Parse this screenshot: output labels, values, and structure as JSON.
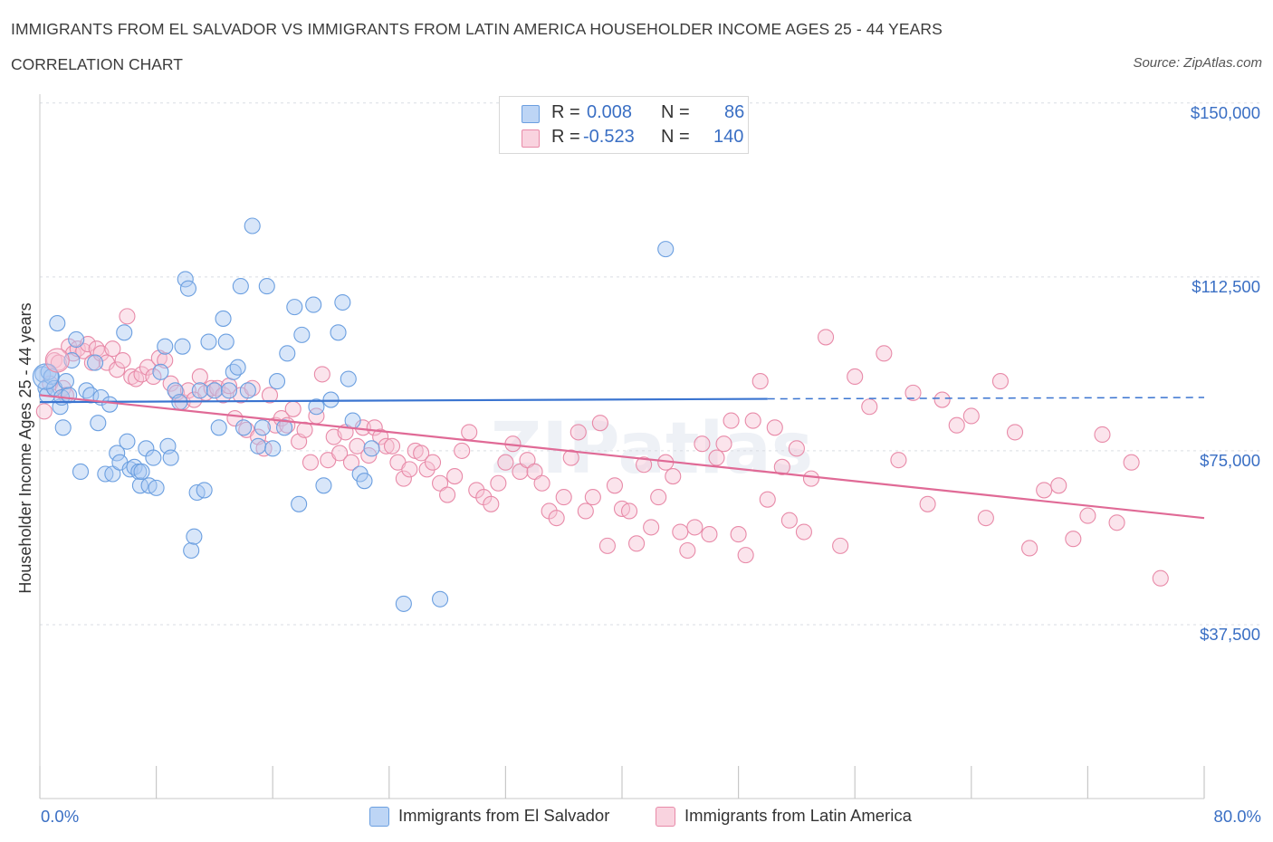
{
  "title": "IMMIGRANTS FROM EL SALVADOR VS IMMIGRANTS FROM LATIN AMERICA HOUSEHOLDER INCOME AGES 25 - 44 YEARS",
  "subtitle": "CORRELATION CHART",
  "source": "Source: ZipAtlas.com",
  "watermark": "ZIPatlas",
  "legend": {
    "rows": [
      {
        "r_label": "R =",
        "r_value": "0.008",
        "n_label": "N =",
        "n_value": "86",
        "color": "#a9c8f2",
        "border": "#6b9fe0"
      },
      {
        "r_label": "R =",
        "r_value": "-0.523",
        "n_label": "N =",
        "n_value": "140",
        "color": "#f7c4d4",
        "border": "#e88aa8"
      }
    ]
  },
  "bottom_legend": [
    {
      "label": "Immigrants from El Salvador",
      "color": "#a9c8f2",
      "border": "#6b9fe0"
    },
    {
      "label": "Immigrants from Latin America",
      "color": "#f7c4d4",
      "border": "#e88aa8"
    }
  ],
  "chart_data": {
    "type": "scatter",
    "title": "IMMIGRANTS FROM EL SALVADOR VS IMMIGRANTS FROM LATIN AMERICA HOUSEHOLDER INCOME AGES 25 - 44 YEARS",
    "ylabel": "Householder Income Ages 25 - 44 years",
    "xlabel": "",
    "x_tick_labels": [
      "0.0%",
      "80.0%"
    ],
    "y_tick_labels": [
      "$150,000",
      "$112,500",
      "$75,000",
      "$37,500"
    ],
    "y_ticks": [
      150000,
      112500,
      75000,
      37500
    ],
    "xlim": [
      0,
      80
    ],
    "ylim": [
      0,
      150000
    ],
    "grid": true,
    "colors": {
      "series1": "#6b9fe0",
      "series2": "#e88aa8",
      "line1": "#3a74d0",
      "line2": "#e06a96",
      "tick_label": "#3a6fc4"
    },
    "series": [
      {
        "name": "Immigrants from El Salvador",
        "trend": {
          "x": [
            0,
            50
          ],
          "y": [
            85500,
            86200
          ],
          "dashed_to_x": 80,
          "dashed_end_y": 86500
        },
        "points": [
          [
            0.2,
            91500
          ],
          [
            0.4,
            88500
          ],
          [
            0.5,
            87000
          ],
          [
            0.6,
            92000
          ],
          [
            0.8,
            91000
          ],
          [
            1.0,
            88500
          ],
          [
            1.2,
            102500
          ],
          [
            1.4,
            84500
          ],
          [
            1.5,
            86500
          ],
          [
            1.6,
            80000
          ],
          [
            1.8,
            90000
          ],
          [
            2.0,
            87000
          ],
          [
            2.2,
            94500
          ],
          [
            2.5,
            99000
          ],
          [
            2.8,
            70500
          ],
          [
            3.2,
            88000
          ],
          [
            3.5,
            87000
          ],
          [
            3.8,
            94000
          ],
          [
            4.0,
            81000
          ],
          [
            4.2,
            86500
          ],
          [
            4.5,
            70000
          ],
          [
            4.8,
            85000
          ],
          [
            5.0,
            70000
          ],
          [
            5.3,
            74500
          ],
          [
            5.5,
            72500
          ],
          [
            5.8,
            100500
          ],
          [
            6.0,
            77000
          ],
          [
            6.2,
            71000
          ],
          [
            6.5,
            71500
          ],
          [
            6.8,
            70500
          ],
          [
            6.9,
            67500
          ],
          [
            7.0,
            70500
          ],
          [
            7.3,
            75500
          ],
          [
            7.5,
            67500
          ],
          [
            7.8,
            73500
          ],
          [
            8.0,
            67000
          ],
          [
            8.3,
            92000
          ],
          [
            8.6,
            97500
          ],
          [
            8.8,
            76000
          ],
          [
            9.0,
            73500
          ],
          [
            9.3,
            88000
          ],
          [
            9.6,
            85500
          ],
          [
            9.8,
            97500
          ],
          [
            10.0,
            112000
          ],
          [
            10.2,
            110000
          ],
          [
            10.4,
            53500
          ],
          [
            10.6,
            56500
          ],
          [
            10.8,
            66000
          ],
          [
            11.0,
            88000
          ],
          [
            11.3,
            66500
          ],
          [
            11.6,
            98500
          ],
          [
            12.0,
            88000
          ],
          [
            12.3,
            80000
          ],
          [
            12.6,
            103500
          ],
          [
            12.8,
            98500
          ],
          [
            13.0,
            88000
          ],
          [
            13.3,
            92000
          ],
          [
            13.6,
            93000
          ],
          [
            13.8,
            110500
          ],
          [
            14.0,
            80000
          ],
          [
            14.3,
            88000
          ],
          [
            14.6,
            123500
          ],
          [
            15.0,
            76000
          ],
          [
            15.3,
            80000
          ],
          [
            15.6,
            110500
          ],
          [
            16.0,
            75500
          ],
          [
            16.3,
            90000
          ],
          [
            16.8,
            80000
          ],
          [
            17.0,
            96000
          ],
          [
            17.5,
            106000
          ],
          [
            17.8,
            63500
          ],
          [
            18.0,
            100000
          ],
          [
            18.8,
            106500
          ],
          [
            19.0,
            84500
          ],
          [
            19.5,
            67500
          ],
          [
            20.0,
            86000
          ],
          [
            20.5,
            100500
          ],
          [
            20.8,
            107000
          ],
          [
            21.2,
            90500
          ],
          [
            21.5,
            81500
          ],
          [
            22.0,
            70000
          ],
          [
            22.3,
            68500
          ],
          [
            22.8,
            75500
          ],
          [
            25.0,
            42000
          ],
          [
            27.5,
            43000
          ],
          [
            43.0,
            118500
          ]
        ]
      },
      {
        "name": "Immigrants from Latin America",
        "trend": {
          "x": [
            0,
            80
          ],
          "y": [
            87000,
            60500
          ]
        },
        "points": [
          [
            0.3,
            83500
          ],
          [
            0.7,
            89500
          ],
          [
            1.0,
            94500
          ],
          [
            1.3,
            94000
          ],
          [
            1.6,
            88500
          ],
          [
            1.8,
            87000
          ],
          [
            2.0,
            97500
          ],
          [
            2.3,
            96000
          ],
          [
            2.6,
            97000
          ],
          [
            3.0,
            96500
          ],
          [
            3.3,
            98000
          ],
          [
            3.6,
            94000
          ],
          [
            3.9,
            97000
          ],
          [
            4.2,
            96000
          ],
          [
            4.6,
            94000
          ],
          [
            5.0,
            97000
          ],
          [
            5.3,
            92500
          ],
          [
            5.7,
            94500
          ],
          [
            6.0,
            104000
          ],
          [
            6.3,
            91000
          ],
          [
            6.6,
            90500
          ],
          [
            7.0,
            91500
          ],
          [
            7.4,
            93000
          ],
          [
            7.8,
            91000
          ],
          [
            8.2,
            95000
          ],
          [
            8.6,
            94500
          ],
          [
            9.0,
            89500
          ],
          [
            9.4,
            87500
          ],
          [
            9.8,
            85500
          ],
          [
            10.2,
            88000
          ],
          [
            10.6,
            86000
          ],
          [
            11.0,
            91000
          ],
          [
            11.4,
            87500
          ],
          [
            11.8,
            88500
          ],
          [
            12.2,
            88500
          ],
          [
            12.6,
            87000
          ],
          [
            13.0,
            89000
          ],
          [
            13.4,
            82000
          ],
          [
            13.8,
            87000
          ],
          [
            14.2,
            79500
          ],
          [
            14.6,
            88500
          ],
          [
            15.0,
            78000
          ],
          [
            15.4,
            75500
          ],
          [
            15.8,
            87000
          ],
          [
            16.2,
            80500
          ],
          [
            16.6,
            82000
          ],
          [
            17.0,
            80500
          ],
          [
            17.4,
            84000
          ],
          [
            17.8,
            77000
          ],
          [
            18.2,
            79500
          ],
          [
            18.6,
            72500
          ],
          [
            19.0,
            82500
          ],
          [
            19.4,
            91500
          ],
          [
            19.8,
            73000
          ],
          [
            20.2,
            78000
          ],
          [
            20.6,
            74500
          ],
          [
            21.0,
            79000
          ],
          [
            21.4,
            72500
          ],
          [
            21.8,
            76000
          ],
          [
            22.2,
            80000
          ],
          [
            22.6,
            74000
          ],
          [
            23.0,
            80000
          ],
          [
            23.4,
            78000
          ],
          [
            23.8,
            76000
          ],
          [
            24.2,
            76000
          ],
          [
            24.6,
            72500
          ],
          [
            25.0,
            69000
          ],
          [
            25.4,
            71000
          ],
          [
            25.8,
            75000
          ],
          [
            26.2,
            74500
          ],
          [
            26.6,
            71000
          ],
          [
            27.0,
            72500
          ],
          [
            27.5,
            68000
          ],
          [
            28.0,
            65500
          ],
          [
            28.5,
            69500
          ],
          [
            29.0,
            75000
          ],
          [
            29.5,
            79000
          ],
          [
            30.0,
            66500
          ],
          [
            30.5,
            65000
          ],
          [
            31.0,
            63500
          ],
          [
            31.5,
            68000
          ],
          [
            32.0,
            72500
          ],
          [
            32.5,
            76500
          ],
          [
            33.0,
            70500
          ],
          [
            33.5,
            73000
          ],
          [
            34.0,
            70500
          ],
          [
            34.5,
            68000
          ],
          [
            35.0,
            62000
          ],
          [
            35.5,
            60500
          ],
          [
            36.0,
            65000
          ],
          [
            36.5,
            73500
          ],
          [
            37.0,
            79000
          ],
          [
            37.5,
            62000
          ],
          [
            38.0,
            65000
          ],
          [
            38.5,
            81000
          ],
          [
            39.0,
            54500
          ],
          [
            39.5,
            67500
          ],
          [
            40.0,
            62500
          ],
          [
            40.5,
            62000
          ],
          [
            41.0,
            55000
          ],
          [
            41.5,
            72000
          ],
          [
            42.0,
            58500
          ],
          [
            42.5,
            65000
          ],
          [
            43.0,
            72500
          ],
          [
            43.5,
            69500
          ],
          [
            44.0,
            57500
          ],
          [
            44.5,
            53500
          ],
          [
            45.0,
            58500
          ],
          [
            45.5,
            76500
          ],
          [
            46.0,
            57000
          ],
          [
            46.5,
            73500
          ],
          [
            47.0,
            76500
          ],
          [
            47.5,
            81500
          ],
          [
            48.0,
            57000
          ],
          [
            48.5,
            52500
          ],
          [
            49.0,
            81500
          ],
          [
            49.5,
            90000
          ],
          [
            50.0,
            64500
          ],
          [
            50.5,
            80000
          ],
          [
            51.0,
            71500
          ],
          [
            51.5,
            60000
          ],
          [
            52.0,
            75500
          ],
          [
            52.5,
            57500
          ],
          [
            53.0,
            69000
          ],
          [
            54.0,
            99500
          ],
          [
            55.0,
            54500
          ],
          [
            56.0,
            91000
          ],
          [
            57.0,
            84500
          ],
          [
            58.0,
            96000
          ],
          [
            59.0,
            73000
          ],
          [
            60.0,
            87500
          ],
          [
            61.0,
            63500
          ],
          [
            62.0,
            86000
          ],
          [
            63.0,
            80500
          ],
          [
            64.0,
            82500
          ],
          [
            65.0,
            60500
          ],
          [
            66.0,
            90000
          ],
          [
            67.0,
            79000
          ],
          [
            68.0,
            54000
          ],
          [
            69.0,
            66500
          ],
          [
            70.0,
            67500
          ],
          [
            71.0,
            56000
          ],
          [
            72.0,
            61000
          ],
          [
            73.0,
            78500
          ],
          [
            74.0,
            59500
          ],
          [
            75.0,
            72500
          ],
          [
            77.0,
            47500
          ]
        ]
      }
    ]
  }
}
